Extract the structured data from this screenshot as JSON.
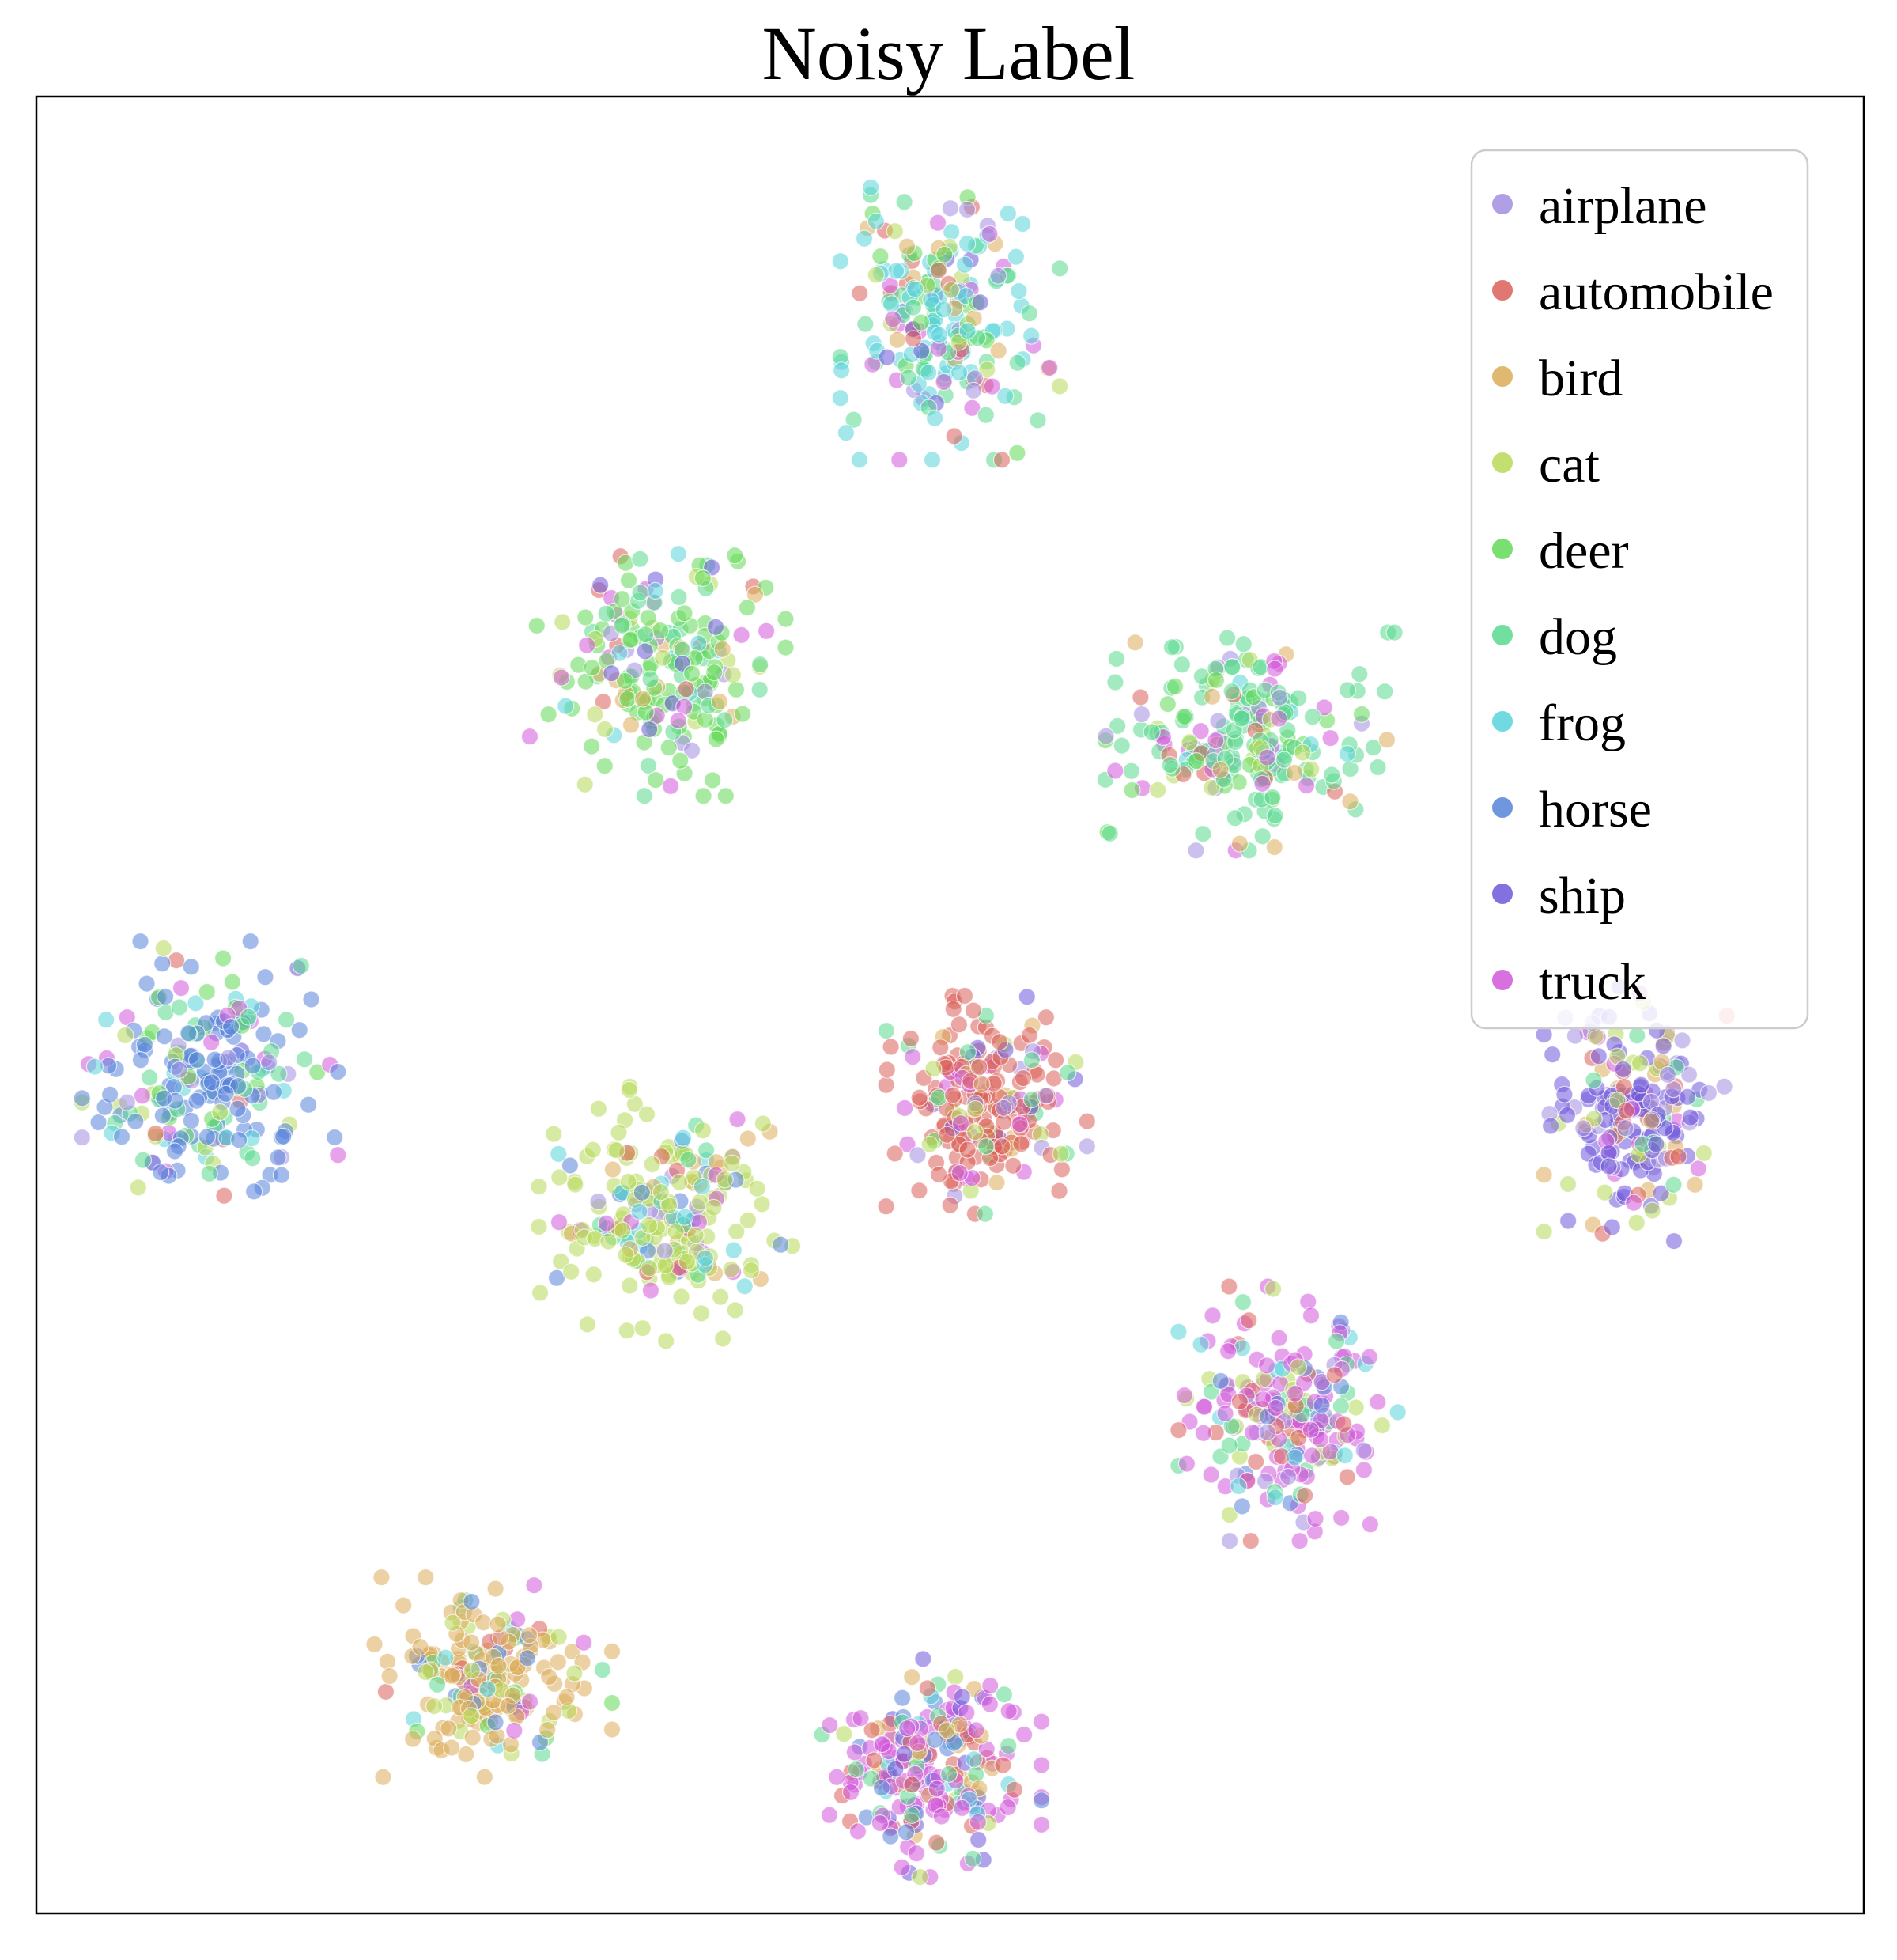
{
  "chart_data": {
    "type": "scatter",
    "title": "Noisy Label",
    "xlabel": "",
    "ylabel": "",
    "axes_visible": false,
    "grid": false,
    "legend_position": "upper-right",
    "xlim": [
      -100,
      100
    ],
    "ylim": [
      -100,
      100
    ],
    "point_alpha": 0.55,
    "series": [
      {
        "name": "airplane",
        "color": "#a38ee0"
      },
      {
        "name": "automobile",
        "color": "#db5f57"
      },
      {
        "name": "bird",
        "color": "#dbac57"
      },
      {
        "name": "cat",
        "color": "#b7d957"
      },
      {
        "name": "deer",
        "color": "#62d957"
      },
      {
        "name": "dog",
        "color": "#57d98e"
      },
      {
        "name": "frog",
        "color": "#57d3db"
      },
      {
        "name": "horse",
        "color": "#5784db"
      },
      {
        "name": "ship",
        "color": "#7057db"
      },
      {
        "name": "truck",
        "color": "#d157db"
      }
    ],
    "clusters": [
      {
        "center": [
          0,
          75
        ],
        "spread": [
          12,
          15
        ],
        "count": 210,
        "mix": {
          "frog": 0.35,
          "dog": 0.2,
          "deer": 0.1,
          "truck": 0.1,
          "automobile": 0.06,
          "bird": 0.06,
          "airplane": 0.05,
          "ship": 0.04,
          "cat": 0.04
        }
      },
      {
        "center": [
          -32,
          37
        ],
        "spread": [
          14,
          14
        ],
        "count": 200,
        "mix": {
          "deer": 0.45,
          "dog": 0.12,
          "truck": 0.1,
          "cat": 0.08,
          "bird": 0.07,
          "frog": 0.06,
          "automobile": 0.05,
          "ship": 0.04,
          "airplane": 0.03
        }
      },
      {
        "center": [
          33,
          29
        ],
        "spread": [
          16,
          12
        ],
        "count": 230,
        "mix": {
          "dog": 0.55,
          "truck": 0.1,
          "deer": 0.1,
          "airplane": 0.07,
          "bird": 0.05,
          "cat": 0.05,
          "frog": 0.04,
          "automobile": 0.04
        }
      },
      {
        "center": [
          -81,
          -7
        ],
        "spread": [
          14,
          14
        ],
        "count": 230,
        "mix": {
          "horse": 0.5,
          "dog": 0.1,
          "frog": 0.08,
          "truck": 0.08,
          "deer": 0.07,
          "airplane": 0.06,
          "cat": 0.05,
          "automobile": 0.03,
          "ship": 0.03
        }
      },
      {
        "center": [
          4,
          -11
        ],
        "spread": [
          11,
          12
        ],
        "count": 220,
        "mix": {
          "automobile": 0.55,
          "truck": 0.12,
          "airplane": 0.08,
          "cat": 0.07,
          "dog": 0.06,
          "bird": 0.05,
          "ship": 0.04,
          "deer": 0.03
        }
      },
      {
        "center": [
          75,
          -12
        ],
        "spread": [
          10,
          14
        ],
        "count": 200,
        "mix": {
          "ship": 0.45,
          "airplane": 0.18,
          "cat": 0.1,
          "automobile": 0.08,
          "truck": 0.08,
          "bird": 0.06,
          "dog": 0.05
        }
      },
      {
        "center": [
          -31,
          -23
        ],
        "spread": [
          14,
          14
        ],
        "count": 220,
        "mix": {
          "cat": 0.55,
          "frog": 0.08,
          "truck": 0.08,
          "bird": 0.08,
          "airplane": 0.06,
          "dog": 0.06,
          "horse": 0.05,
          "automobile": 0.04
        }
      },
      {
        "center": [
          37,
          -45
        ],
        "spread": [
          12,
          14
        ],
        "count": 210,
        "mix": {
          "truck": 0.55,
          "automobile": 0.1,
          "cat": 0.08,
          "dog": 0.07,
          "horse": 0.07,
          "airplane": 0.07,
          "frog": 0.06
        }
      },
      {
        "center": [
          -50,
          -74
        ],
        "spread": [
          13,
          11
        ],
        "count": 200,
        "mix": {
          "bird": 0.55,
          "cat": 0.1,
          "horse": 0.08,
          "automobile": 0.07,
          "dog": 0.07,
          "deer": 0.05,
          "frog": 0.04,
          "truck": 0.04
        }
      },
      {
        "center": [
          -2,
          -84
        ],
        "spread": [
          12,
          12
        ],
        "count": 220,
        "mix": {
          "truck": 0.45,
          "automobile": 0.18,
          "horse": 0.1,
          "dog": 0.07,
          "cat": 0.06,
          "bird": 0.05,
          "ship": 0.05,
          "frog": 0.04
        }
      }
    ]
  }
}
